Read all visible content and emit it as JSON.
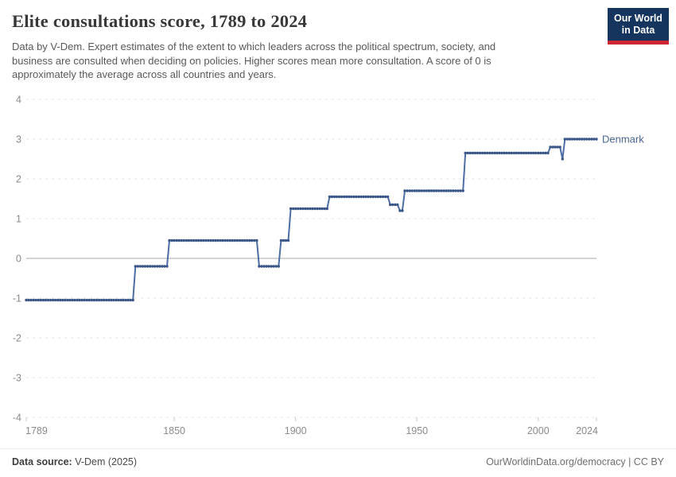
{
  "header": {
    "title": "Elite consultations score, 1789 to 2024",
    "subtitle_lines": [
      "Data by V-Dem. Expert estimates of the extent to which leaders across the political spectrum, society, and",
      "business are consulted when deciding on policies. Higher scores mean more consultation. A score of 0 is",
      "approximately the average across all countries and years."
    ],
    "logo": {
      "line1": "Our World",
      "line2": "in Data"
    }
  },
  "footer": {
    "data_source_label": "Data source:",
    "data_source_value": "V-Dem (2025)",
    "credit": "OurWorldinData.org/democracy | CC BY"
  },
  "chart_data": {
    "type": "line",
    "title": "Elite consultations score, 1789 to 2024",
    "xlabel": "",
    "ylabel": "",
    "xlim": [
      1789,
      2024
    ],
    "ylim": [
      -4,
      4
    ],
    "xticks": [
      1789,
      1850,
      1900,
      1950,
      2000,
      2024
    ],
    "yticks": [
      4,
      3,
      2,
      1,
      0,
      -1,
      -2,
      -3,
      -4
    ],
    "grid": "horizontal-dashed",
    "legend_position": "end-of-line-label",
    "series": [
      {
        "name": "Denmark",
        "note": "yearly step data; segments are [startYear, endYear, value]",
        "segments": [
          [
            1789,
            1833,
            -1.05
          ],
          [
            1834,
            1847,
            -0.2
          ],
          [
            1848,
            1884,
            0.45
          ],
          [
            1885,
            1893,
            -0.2
          ],
          [
            1894,
            1897,
            0.45
          ],
          [
            1898,
            1913,
            1.25
          ],
          [
            1914,
            1938,
            1.55
          ],
          [
            1939,
            1942,
            1.35
          ],
          [
            1943,
            1944,
            1.2
          ],
          [
            1945,
            1969,
            1.7
          ],
          [
            1970,
            2004,
            2.65
          ],
          [
            2005,
            2009,
            2.8
          ],
          [
            2010,
            2010,
            2.5
          ],
          [
            2011,
            2024,
            3.0
          ]
        ]
      }
    ],
    "colors": {
      "line": "#4e6da5",
      "marker": "#3a5688",
      "entity_label": "#4a6592",
      "gridline": "#e2e2e2",
      "zero_line": "#a9a9a9",
      "axis_tick": "#c8c8c8",
      "logo_navy": "#15345e",
      "logo_red": "#cc2834"
    }
  }
}
